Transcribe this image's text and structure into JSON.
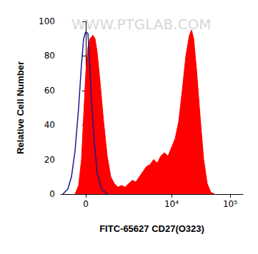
{
  "chart_data": {
    "type": "line",
    "x_label": "FITC-65627 CD27(O323)",
    "y_label": "Relative Cell Number",
    "annotations": [
      "WWW.PTGLAB.COM"
    ],
    "xlim": [
      -35,
      220
    ],
    "xticks": [
      0,
      {
        "value": 120,
        "label": "10⁴"
      },
      {
        "value": 202,
        "label": "10⁵"
      }
    ],
    "ylim": [
      0,
      100
    ],
    "yticks": [
      0,
      20,
      40,
      60,
      80,
      100
    ],
    "grid": false,
    "series": [
      {
        "type": "area",
        "color": "#ff0000",
        "x": [
          -15,
          -10,
          -6,
          -3,
          0,
          3,
          6,
          10,
          13,
          16,
          20,
          25,
          30,
          35,
          40,
          45,
          50,
          55,
          60,
          65,
          70,
          75,
          80,
          85,
          90,
          95,
          100,
          105,
          110,
          115,
          120,
          125,
          130,
          135,
          140,
          145,
          148,
          151,
          155,
          160,
          165,
          170,
          175,
          180
        ],
        "values": [
          0,
          5,
          20,
          45,
          70,
          85,
          90,
          92,
          90,
          82,
          65,
          42,
          22,
          10,
          6,
          4,
          5,
          4,
          6,
          8,
          7,
          10,
          13,
          16,
          17,
          20,
          18,
          22,
          24,
          22,
          27,
          32,
          42,
          60,
          80,
          92,
          95,
          90,
          72,
          45,
          20,
          6,
          1,
          0
        ]
      },
      {
        "type": "line",
        "color": "#1a1a8c",
        "x": [
          -32,
          -25,
          -20,
          -15,
          -10,
          -6,
          -3,
          0,
          3,
          5,
          8,
          12,
          16,
          22,
          30
        ],
        "values": [
          0,
          3,
          10,
          25,
          50,
          75,
          90,
          94,
          93,
          80,
          55,
          30,
          12,
          3,
          0
        ]
      }
    ]
  }
}
